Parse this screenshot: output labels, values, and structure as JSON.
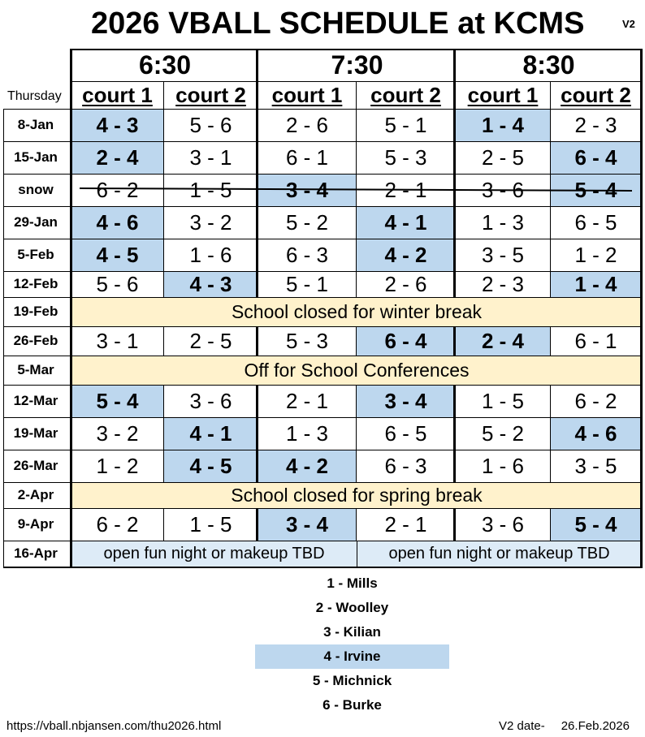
{
  "title": "2026 VBALL SCHEDULE at KCMS",
  "version": "V2",
  "day_label": "Thursday",
  "times": [
    "6:30",
    "7:30",
    "8:30"
  ],
  "courts": [
    "court 1",
    "court 2",
    "court 1",
    "court 2",
    "court 1",
    "court 2"
  ],
  "rows": [
    {
      "date": "8-Jan",
      "games": [
        "4 - 3",
        "5 - 6",
        "2 - 6",
        "5 - 1",
        "1 - 4",
        "2 - 3"
      ],
      "irvine": [
        true,
        false,
        false,
        false,
        true,
        false
      ]
    },
    {
      "date": "15-Jan",
      "games": [
        "2 - 4",
        "3 - 1",
        "6 - 1",
        "5 - 3",
        "2 - 5",
        "6 - 4"
      ],
      "irvine": [
        true,
        false,
        false,
        false,
        false,
        true
      ]
    },
    {
      "date": "snow",
      "games": [
        "6 - 2",
        "1 - 5",
        "3 - 4",
        "2 - 1",
        "3 - 6",
        "5 - 4"
      ],
      "irvine": [
        false,
        false,
        true,
        false,
        false,
        true
      ],
      "struck": true
    },
    {
      "date": "29-Jan",
      "games": [
        "4 - 6",
        "3 - 2",
        "5 - 2",
        "4 - 1",
        "1 - 3",
        "6 - 5"
      ],
      "irvine": [
        true,
        false,
        false,
        true,
        false,
        false
      ]
    },
    {
      "date": "5-Feb",
      "games": [
        "4 - 5",
        "1 - 6",
        "6 - 3",
        "4 - 2",
        "3 - 5",
        "1 - 2"
      ],
      "irvine": [
        true,
        false,
        false,
        true,
        false,
        false
      ]
    },
    {
      "date": "12-Feb",
      "games": [
        "5 - 6",
        "4 - 3",
        "5 - 1",
        "2 - 6",
        "2 - 3",
        "1 - 4"
      ],
      "irvine": [
        false,
        true,
        false,
        false,
        false,
        true
      ]
    },
    {
      "date": "19-Feb",
      "banner": "School closed for winter break"
    },
    {
      "date": "26-Feb",
      "games": [
        "3 - 1",
        "2 - 5",
        "5 - 3",
        "6 - 4",
        "2 - 4",
        "6 - 1"
      ],
      "irvine": [
        false,
        false,
        false,
        true,
        true,
        false
      ]
    },
    {
      "date": "5-Mar",
      "banner": "Off for School Conferences"
    },
    {
      "date": "12-Mar",
      "games": [
        "5 - 4",
        "3 - 6",
        "2 - 1",
        "3 - 4",
        "1 - 5",
        "6 - 2"
      ],
      "irvine": [
        true,
        false,
        false,
        true,
        false,
        false
      ]
    },
    {
      "date": "19-Mar",
      "games": [
        "3 - 2",
        "4 - 1",
        "1 - 3",
        "6 - 5",
        "5 - 2",
        "4 - 6"
      ],
      "irvine": [
        false,
        true,
        false,
        false,
        false,
        true
      ]
    },
    {
      "date": "26-Mar",
      "games": [
        "1 - 2",
        "4 - 5",
        "4 - 2",
        "6 - 3",
        "1 - 6",
        "3 - 5"
      ],
      "irvine": [
        false,
        true,
        true,
        false,
        false,
        false
      ]
    },
    {
      "date": "2-Apr",
      "banner": "School closed for spring break"
    },
    {
      "date": "9-Apr",
      "games": [
        "6 - 2",
        "1 - 5",
        "3 - 4",
        "2 - 1",
        "3 - 6",
        "5 - 4"
      ],
      "irvine": [
        false,
        false,
        true,
        false,
        false,
        true
      ]
    },
    {
      "date": "16-Apr",
      "open": [
        "open fun night or makeup TBD",
        "open fun night or makeup TBD"
      ]
    }
  ],
  "legend": [
    {
      "label": "1 - Mills",
      "highlight": false
    },
    {
      "label": "2 - Woolley",
      "highlight": false
    },
    {
      "label": "3 - Kilian",
      "highlight": false
    },
    {
      "label": "4 - Irvine",
      "highlight": true
    },
    {
      "label": "5 - Michnick",
      "highlight": false
    },
    {
      "label": "6 - Burke",
      "highlight": false
    }
  ],
  "footer": {
    "url": "https://vball.nbjansen.com/thu2026.html",
    "version_date_label": "V2 date-",
    "version_date": "26.Feb.2026"
  },
  "colors": {
    "irvine_highlight": "#bdd7ee",
    "banner": "#fff2cc",
    "open_night": "#ddebf7"
  }
}
